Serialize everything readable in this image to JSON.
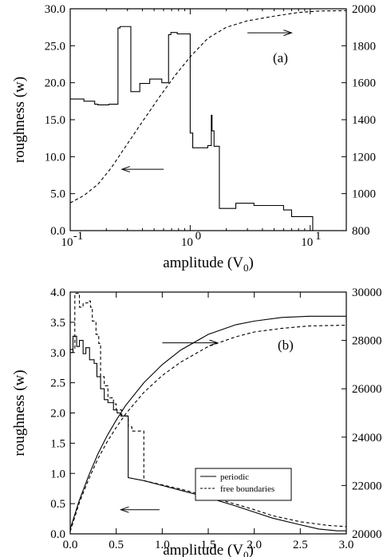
{
  "chart_data": [
    {
      "type": "line",
      "panel_label": "(a)",
      "xlabel": "amplitude (V",
      "xlabel_sub": "0",
      "xlabel_close": ")",
      "ylabel": "roughness (w)",
      "xscale": "log",
      "xlim": [
        0.1,
        20
      ],
      "ylim": [
        0,
        30
      ],
      "y2lim": [
        800,
        2000
      ],
      "xticks": [
        {
          "value": 0.1,
          "base": "10",
          "exp": "-1"
        },
        {
          "value": 1,
          "base": "10",
          "exp": "0"
        },
        {
          "value": 10,
          "base": "10",
          "exp": "1"
        }
      ],
      "yticks": [
        "0.0",
        "5.0",
        "10.0",
        "15.0",
        "20.0",
        "25.0",
        "30.0"
      ],
      "y2ticks": [
        "800",
        "1000",
        "1200",
        "1400",
        "1600",
        "1800",
        "2000"
      ],
      "series": [
        {
          "style": "solid",
          "axis": "left",
          "points": [
            [
              0.1,
              17.8
            ],
            [
              0.13,
              17.8
            ],
            [
              0.13,
              17.5
            ],
            [
              0.16,
              17.5
            ],
            [
              0.16,
              17.1
            ],
            [
              0.17,
              17.1
            ],
            [
              0.17,
              17.0
            ],
            [
              0.21,
              17.0
            ],
            [
              0.21,
              17.1
            ],
            [
              0.25,
              17.1
            ],
            [
              0.25,
              27.4
            ],
            [
              0.26,
              27.4
            ],
            [
              0.26,
              27.6
            ],
            [
              0.32,
              27.6
            ],
            [
              0.32,
              18.8
            ],
            [
              0.38,
              18.8
            ],
            [
              0.38,
              19.9
            ],
            [
              0.46,
              19.9
            ],
            [
              0.46,
              20.5
            ],
            [
              0.58,
              20.5
            ],
            [
              0.58,
              20.0
            ],
            [
              0.66,
              20.0
            ],
            [
              0.66,
              26.5
            ],
            [
              0.69,
              26.5
            ],
            [
              0.69,
              26.8
            ],
            [
              0.78,
              26.8
            ],
            [
              0.78,
              26.6
            ],
            [
              1.0,
              26.6
            ],
            [
              1.0,
              13.2
            ],
            [
              1.05,
              13.2
            ],
            [
              1.05,
              11.2
            ],
            [
              1.4,
              11.2
            ],
            [
              1.4,
              11.5
            ],
            [
              1.5,
              11.5
            ],
            [
              1.5,
              15.6
            ],
            [
              1.52,
              15.6
            ],
            [
              1.52,
              13.5
            ],
            [
              1.58,
              13.5
            ],
            [
              1.58,
              11.4
            ],
            [
              1.75,
              11.4
            ],
            [
              1.75,
              3.0
            ],
            [
              2.4,
              3.0
            ],
            [
              2.4,
              3.7
            ],
            [
              3.4,
              3.7
            ],
            [
              3.4,
              3.4
            ],
            [
              6.0,
              3.4
            ],
            [
              6.0,
              2.8
            ],
            [
              7.0,
              2.8
            ],
            [
              7.0,
              1.9
            ],
            [
              10.5,
              1.9
            ],
            [
              10.5,
              0
            ]
          ]
        },
        {
          "style": "dashed",
          "axis": "right",
          "points": [
            [
              0.1,
              950
            ],
            [
              0.13,
              990
            ],
            [
              0.17,
              1050
            ],
            [
              0.22,
              1140
            ],
            [
              0.3,
              1270
            ],
            [
              0.4,
              1390
            ],
            [
              0.55,
              1520
            ],
            [
              0.75,
              1640
            ],
            [
              1.0,
              1740
            ],
            [
              1.4,
              1840
            ],
            [
              2.0,
              1900
            ],
            [
              3.0,
              1935
            ],
            [
              5.0,
              1960
            ],
            [
              8.0,
              1980
            ],
            [
              12.0,
              1988
            ],
            [
              20.0,
              1990
            ]
          ]
        }
      ],
      "arrows": [
        {
          "direction": "right",
          "x_from": 3.0,
          "x_to": 7.0,
          "y": 1870,
          "axis": "right"
        },
        {
          "direction": "left",
          "x_from": 0.6,
          "x_to": 0.27,
          "y": 8.3,
          "axis": "left"
        }
      ]
    },
    {
      "type": "line",
      "panel_label": "(b)",
      "xlabel": "amplitude (V",
      "xlabel_sub": "0",
      "xlabel_close": ")",
      "ylabel": "roughness (w)",
      "xscale": "linear",
      "xlim": [
        0,
        3
      ],
      "ylim": [
        0,
        4
      ],
      "y2lim": [
        20000,
        30000
      ],
      "xticks": [
        "0.0",
        "0.5",
        "1.0",
        "1.5",
        "2.0",
        "2.5",
        "3.0"
      ],
      "yticks": [
        "0.0",
        "0.5",
        "1.0",
        "1.5",
        "2.0",
        "2.5",
        "3.0",
        "3.5",
        "4.0"
      ],
      "y2ticks": [
        "20000",
        "22000",
        "24000",
        "26000",
        "28000",
        "30000"
      ],
      "legend": [
        {
          "label": "periodic",
          "style": "solid"
        },
        {
          "label": "free boundaries",
          "style": "dashed"
        }
      ],
      "series": [
        {
          "name": "periodic",
          "style": "solid",
          "axis": "left",
          "points": [
            [
              0.0,
              3.0
            ],
            [
              0.03,
              3.0
            ],
            [
              0.03,
              3.27
            ],
            [
              0.07,
              3.27
            ],
            [
              0.07,
              3.1
            ],
            [
              0.1,
              3.1
            ],
            [
              0.1,
              3.2
            ],
            [
              0.14,
              3.2
            ],
            [
              0.14,
              2.98
            ],
            [
              0.17,
              2.98
            ],
            [
              0.17,
              3.08
            ],
            [
              0.21,
              3.08
            ],
            [
              0.21,
              2.88
            ],
            [
              0.26,
              2.88
            ],
            [
              0.26,
              2.82
            ],
            [
              0.29,
              2.82
            ],
            [
              0.29,
              2.6
            ],
            [
              0.33,
              2.6
            ],
            [
              0.33,
              2.4
            ],
            [
              0.37,
              2.4
            ],
            [
              0.37,
              2.22
            ],
            [
              0.41,
              2.22
            ],
            [
              0.41,
              2.17
            ],
            [
              0.47,
              2.17
            ],
            [
              0.47,
              2.05
            ],
            [
              0.51,
              2.05
            ],
            [
              0.51,
              2.0
            ],
            [
              0.55,
              2.0
            ],
            [
              0.55,
              1.95
            ],
            [
              0.63,
              1.95
            ],
            [
              0.63,
              0.93
            ],
            [
              0.8,
              0.88
            ],
            [
              1.0,
              0.8
            ],
            [
              1.2,
              0.72
            ],
            [
              1.5,
              0.6
            ],
            [
              1.8,
              0.46
            ],
            [
              2.0,
              0.36
            ],
            [
              2.2,
              0.26
            ],
            [
              2.5,
              0.15
            ],
            [
              2.7,
              0.08
            ],
            [
              2.9,
              0.05
            ],
            [
              3.0,
              0.05
            ]
          ]
        },
        {
          "name": "free boundaries",
          "style": "dashed",
          "axis": "left",
          "points": [
            [
              0.0,
              3.05
            ],
            [
              0.05,
              3.05
            ],
            [
              0.05,
              3.98
            ],
            [
              0.1,
              3.98
            ],
            [
              0.1,
              3.75
            ],
            [
              0.14,
              3.75
            ],
            [
              0.14,
              3.82
            ],
            [
              0.19,
              3.82
            ],
            [
              0.19,
              3.85
            ],
            [
              0.22,
              3.85
            ],
            [
              0.22,
              3.75
            ],
            [
              0.24,
              3.75
            ],
            [
              0.24,
              3.52
            ],
            [
              0.28,
              3.52
            ],
            [
              0.28,
              3.3
            ],
            [
              0.31,
              3.3
            ],
            [
              0.31,
              3.15
            ],
            [
              0.33,
              3.15
            ],
            [
              0.33,
              2.6
            ],
            [
              0.37,
              2.6
            ],
            [
              0.37,
              2.45
            ],
            [
              0.41,
              2.45
            ],
            [
              0.41,
              2.25
            ],
            [
              0.47,
              2.25
            ],
            [
              0.47,
              2.15
            ],
            [
              0.5,
              2.15
            ],
            [
              0.5,
              2.05
            ],
            [
              0.56,
              2.05
            ],
            [
              0.56,
              1.95
            ],
            [
              0.63,
              1.95
            ],
            [
              0.63,
              1.77
            ],
            [
              0.67,
              1.77
            ],
            [
              0.67,
              1.7
            ],
            [
              0.8,
              1.7
            ],
            [
              0.8,
              0.88
            ],
            [
              1.0,
              0.81
            ],
            [
              1.2,
              0.74
            ],
            [
              1.5,
              0.62
            ],
            [
              1.8,
              0.49
            ],
            [
              2.0,
              0.4
            ],
            [
              2.2,
              0.3
            ],
            [
              2.5,
              0.2
            ],
            [
              2.8,
              0.14
            ],
            [
              3.0,
              0.12
            ]
          ]
        },
        {
          "name": "periodic",
          "style": "solid",
          "axis": "right",
          "points": [
            [
              0.0,
              20200
            ],
            [
              0.1,
              21400
            ],
            [
              0.2,
              22400
            ],
            [
              0.3,
              23300
            ],
            [
              0.4,
              24050
            ],
            [
              0.5,
              24700
            ],
            [
              0.6,
              25300
            ],
            [
              0.8,
              26250
            ],
            [
              1.0,
              27000
            ],
            [
              1.2,
              27600
            ],
            [
              1.5,
              28250
            ],
            [
              1.8,
              28650
            ],
            [
              2.0,
              28800
            ],
            [
              2.3,
              28950
            ],
            [
              2.6,
              29000
            ],
            [
              3.0,
              29000
            ]
          ]
        },
        {
          "name": "free boundaries",
          "style": "dashed",
          "axis": "right",
          "points": [
            [
              0.0,
              20100
            ],
            [
              0.1,
              21300
            ],
            [
              0.2,
              22250
            ],
            [
              0.3,
              23100
            ],
            [
              0.4,
              23800
            ],
            [
              0.5,
              24400
            ],
            [
              0.6,
              24950
            ],
            [
              0.8,
              25850
            ],
            [
              1.0,
              26550
            ],
            [
              1.2,
              27100
            ],
            [
              1.5,
              27750
            ],
            [
              1.8,
              28150
            ],
            [
              2.0,
              28350
            ],
            [
              2.3,
              28500
            ],
            [
              2.6,
              28600
            ],
            [
              3.0,
              28630
            ]
          ]
        }
      ],
      "arrows": [
        {
          "direction": "right",
          "x_from": 1.0,
          "x_to": 1.6,
          "y": 27900,
          "axis": "right"
        },
        {
          "direction": "left",
          "x_from": 0.97,
          "x_to": 0.55,
          "y": 0.4,
          "axis": "left"
        }
      ]
    }
  ]
}
